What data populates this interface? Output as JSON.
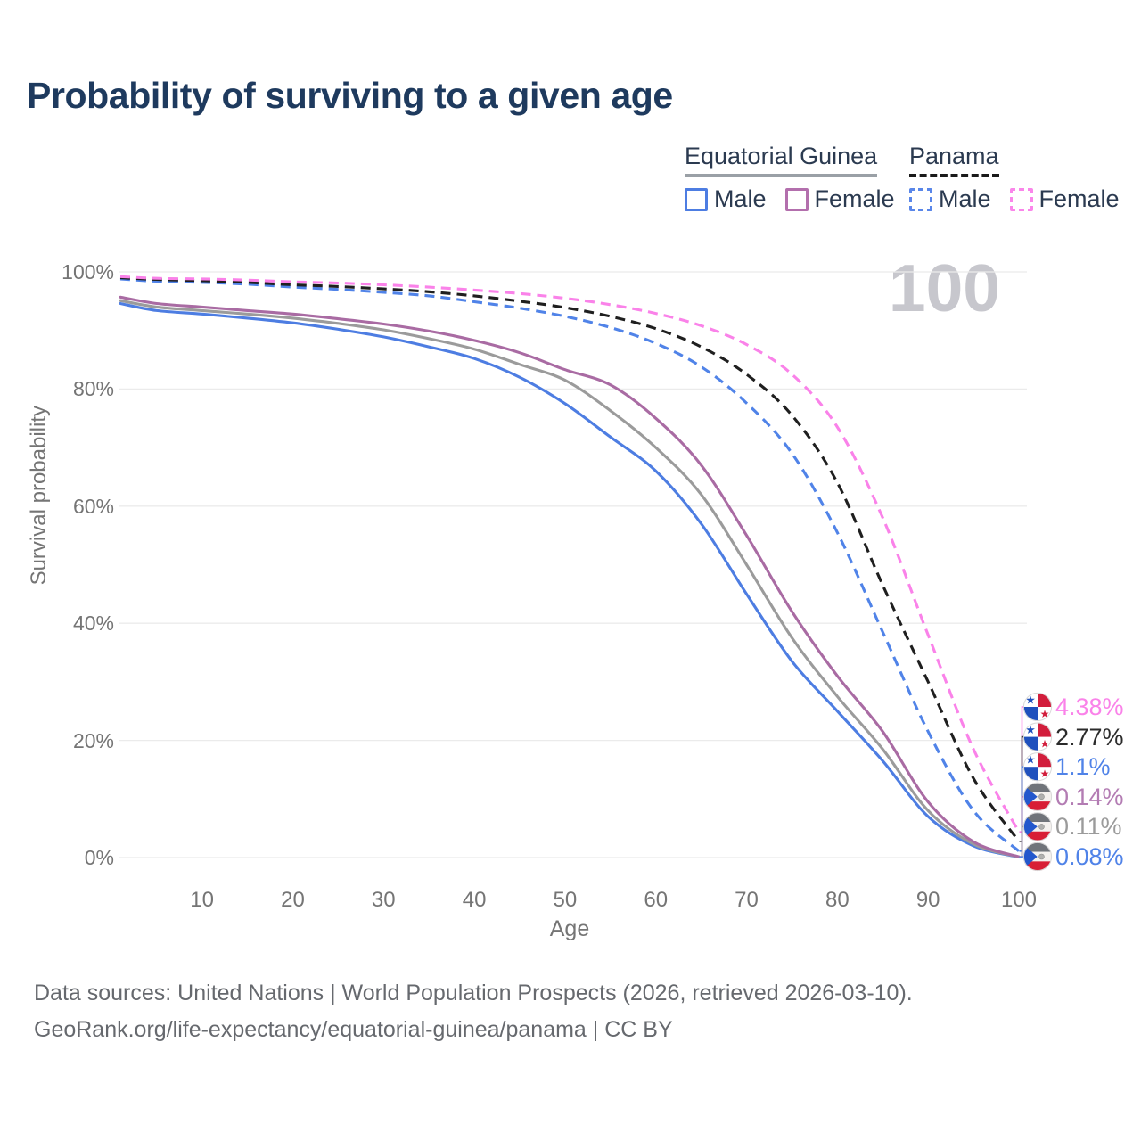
{
  "title": "Probability of surviving to a given age",
  "watermark": "100",
  "legend": {
    "groups": [
      {
        "title": "Equatorial Guinea",
        "line_style": "solid",
        "line_color": "#9aa0a6",
        "items": [
          {
            "label": "Male",
            "color": "#4d7de2",
            "dashed": false
          },
          {
            "label": "Female",
            "color": "#b36fad",
            "dashed": false
          }
        ]
      },
      {
        "title": "Panama",
        "line_style": "dashed",
        "line_color": "#1a1a1a",
        "items": [
          {
            "label": "Male",
            "color": "#5986e9",
            "dashed": true
          },
          {
            "label": "Female",
            "color": "#fa86ea",
            "dashed": true
          }
        ]
      }
    ]
  },
  "chart_data": {
    "type": "line",
    "title": "Probability of surviving to a given age",
    "xlabel": "Age",
    "ylabel": "Survival probability",
    "x_range": [
      1,
      100
    ],
    "y_range": [
      0,
      100
    ],
    "x_ticks": [
      10,
      20,
      30,
      40,
      50,
      60,
      70,
      80,
      90,
      100
    ],
    "y_ticks": [
      0,
      20,
      40,
      60,
      80,
      100
    ],
    "y_tick_suffix": "%",
    "grid": "horizontal",
    "legend_position": "top-right",
    "ages": [
      1,
      5,
      10,
      15,
      20,
      25,
      30,
      35,
      40,
      45,
      50,
      55,
      60,
      65,
      70,
      75,
      80,
      85,
      90,
      95,
      100
    ],
    "series": [
      {
        "name": "Equatorial Guinea Male",
        "style": "solid",
        "color": "#4d7de2",
        "values": [
          94.6,
          93.4,
          92.8,
          92.1,
          91.3,
          90.2,
          88.9,
          87.2,
          85.2,
          82.0,
          77.5,
          71.8,
          66.0,
          57.0,
          45.0,
          33.5,
          25.0,
          16.5,
          7.0,
          2.0,
          0.08
        ]
      },
      {
        "name": "Equatorial Guinea Both sexes",
        "style": "solid",
        "color": "#9b9b9b",
        "values": [
          95.1,
          94.0,
          93.4,
          92.8,
          92.1,
          91.2,
          90.1,
          88.6,
          86.8,
          84.2,
          81.5,
          76.3,
          70.0,
          62.0,
          50.0,
          37.5,
          27.5,
          18.5,
          8.0,
          2.3,
          0.11
        ]
      },
      {
        "name": "Equatorial Guinea Female",
        "style": "solid",
        "color": "#a96ba3",
        "values": [
          95.7,
          94.6,
          94.0,
          93.4,
          92.8,
          92.0,
          91.1,
          89.9,
          88.3,
          86.2,
          83.3,
          80.7,
          75.0,
          67.0,
          55.0,
          42.0,
          31.0,
          21.5,
          9.5,
          2.7,
          0.14
        ]
      },
      {
        "name": "Panama Male",
        "style": "dashed",
        "color": "#5083e8",
        "values": [
          98.8,
          98.4,
          98.2,
          97.9,
          97.4,
          97.0,
          96.5,
          95.9,
          94.9,
          93.8,
          92.4,
          90.5,
          87.8,
          83.8,
          77.6,
          69.0,
          55.5,
          38.5,
          21.5,
          8.0,
          1.1
        ]
      },
      {
        "name": "Panama Both sexes",
        "style": "dashed",
        "color": "#1f1f1f",
        "values": [
          99.0,
          98.7,
          98.5,
          98.2,
          97.8,
          97.5,
          97.1,
          96.6,
          95.9,
          95.0,
          93.9,
          92.4,
          90.3,
          87.2,
          82.5,
          75.5,
          64.0,
          46.5,
          30.0,
          13.5,
          2.77
        ]
      },
      {
        "name": "Panama Female",
        "style": "dashed",
        "color": "#fa82e9",
        "values": [
          99.2,
          98.9,
          98.8,
          98.6,
          98.3,
          98.1,
          97.8,
          97.4,
          96.9,
          96.3,
          95.5,
          94.4,
          92.9,
          90.8,
          87.6,
          82.5,
          73.5,
          58.0,
          38.0,
          18.5,
          4.38
        ]
      }
    ],
    "end_labels": [
      {
        "series": "Panama Female",
        "icon": "panama-flag",
        "text": "4.38%",
        "value": 4.38,
        "color": "#fa82e9"
      },
      {
        "series": "Panama Both sexes",
        "icon": "panama-flag",
        "text": "2.77%",
        "value": 2.77,
        "color": "#2b2b2b"
      },
      {
        "series": "Panama Male",
        "icon": "panama-flag",
        "text": "1.1%",
        "value": 1.1,
        "color": "#5083e8"
      },
      {
        "series": "Equatorial Guinea Female",
        "icon": "equatorial-guinea-flag",
        "text": "0.14%",
        "value": 0.14,
        "color": "#b37cb3"
      },
      {
        "series": "Equatorial Guinea Both sexes",
        "icon": "equatorial-guinea-flag",
        "text": "0.11%",
        "value": 0.11,
        "color": "#9b9b9b"
      },
      {
        "series": "Equatorial Guinea Male",
        "icon": "equatorial-guinea-flag",
        "text": "0.08%",
        "value": 0.08,
        "color": "#5083e8"
      }
    ],
    "flag_colors": {
      "panama": {
        "red": "#d21e3c",
        "blue": "#1f50bd",
        "white": "#ffffff"
      },
      "equatorial_guinea": {
        "top": "#70747a",
        "middle": "#f4f1ee",
        "bottom": "#d81e35",
        "triangle": "#2357cc",
        "emblem": "#b0b0ae"
      }
    }
  },
  "footer": {
    "line1": "Data sources: United Nations | World Population Prospects (2026, retrieved 2026-03-10).",
    "line2": "GeoRank.org/life-expectancy/equatorial-guinea/panama | CC BY"
  }
}
